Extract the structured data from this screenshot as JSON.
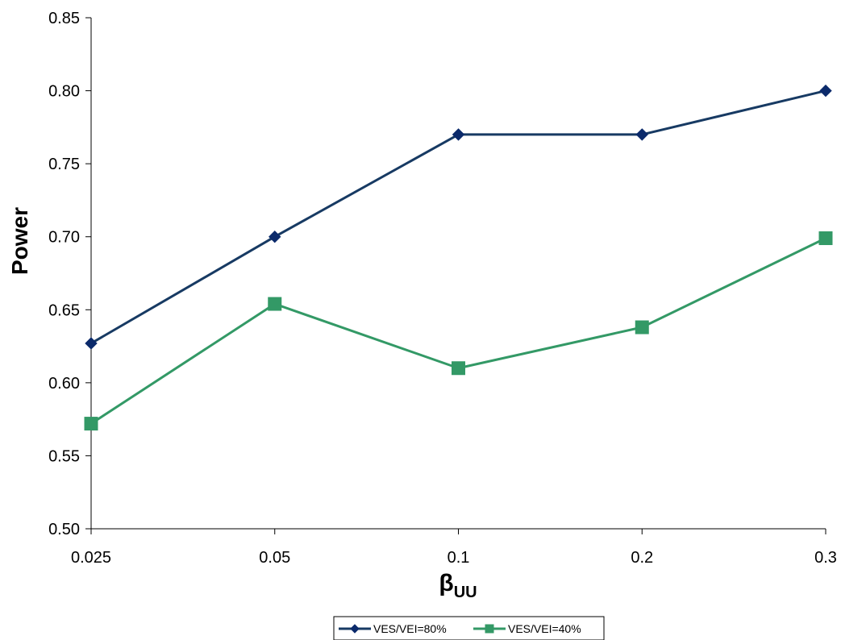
{
  "chart_data": {
    "type": "line",
    "x": [
      "0.025",
      "0.05",
      "0.1",
      "0.2",
      "0.3"
    ],
    "series": [
      {
        "name": "VES/VEI=80%",
        "values": [
          0.627,
          0.7,
          0.77,
          0.77,
          0.8
        ],
        "color": "#0b2a6b",
        "line_color": "#173a63",
        "marker": "diamond"
      },
      {
        "name": "VES/VEI=40%",
        "values": [
          0.572,
          0.654,
          0.61,
          0.638,
          0.699
        ],
        "color": "#339966",
        "line_color": "#339966",
        "marker": "square"
      }
    ],
    "ylim": [
      0.5,
      0.85
    ],
    "yticks": [
      "0.50",
      "0.55",
      "0.60",
      "0.65",
      "0.70",
      "0.75",
      "0.80",
      "0.85"
    ],
    "xlabel_main": "β",
    "xlabel_sub": "UU",
    "ylabel": "Power",
    "grid": false,
    "legend_position": "bottom"
  }
}
